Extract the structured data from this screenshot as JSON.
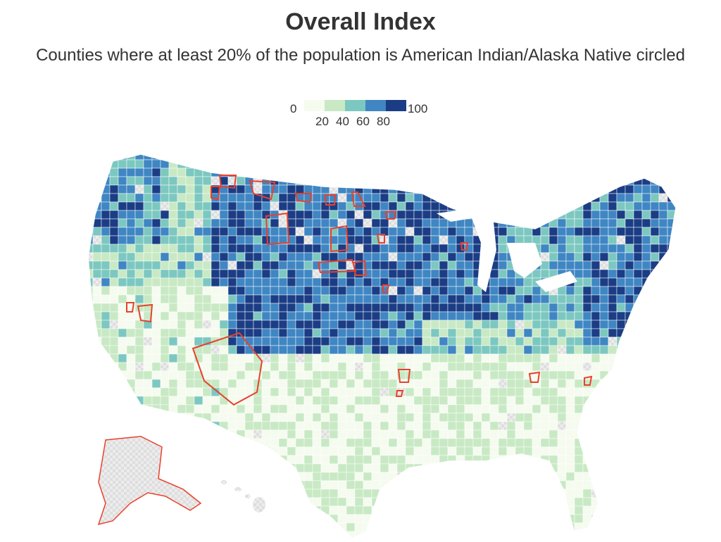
{
  "header": {
    "title": "Overall Index",
    "subtitle": "Counties where at least 20% of the population is American Indian/Alaska Native circled"
  },
  "legend": {
    "min_label": "0",
    "max_label": "100",
    "tick_labels": [
      "20",
      "40",
      "60",
      "80"
    ],
    "colors": [
      "#f5fbef",
      "#c8e9c4",
      "#7cc8c0",
      "#3f86c3",
      "#1b3d85"
    ]
  },
  "map": {
    "no_data_color": "#e3e3e3",
    "highlight_outline_color": "#e8412c",
    "highlight_description": "Counties where at least 20% of the population is American Indian/Alaska Native"
  }
}
